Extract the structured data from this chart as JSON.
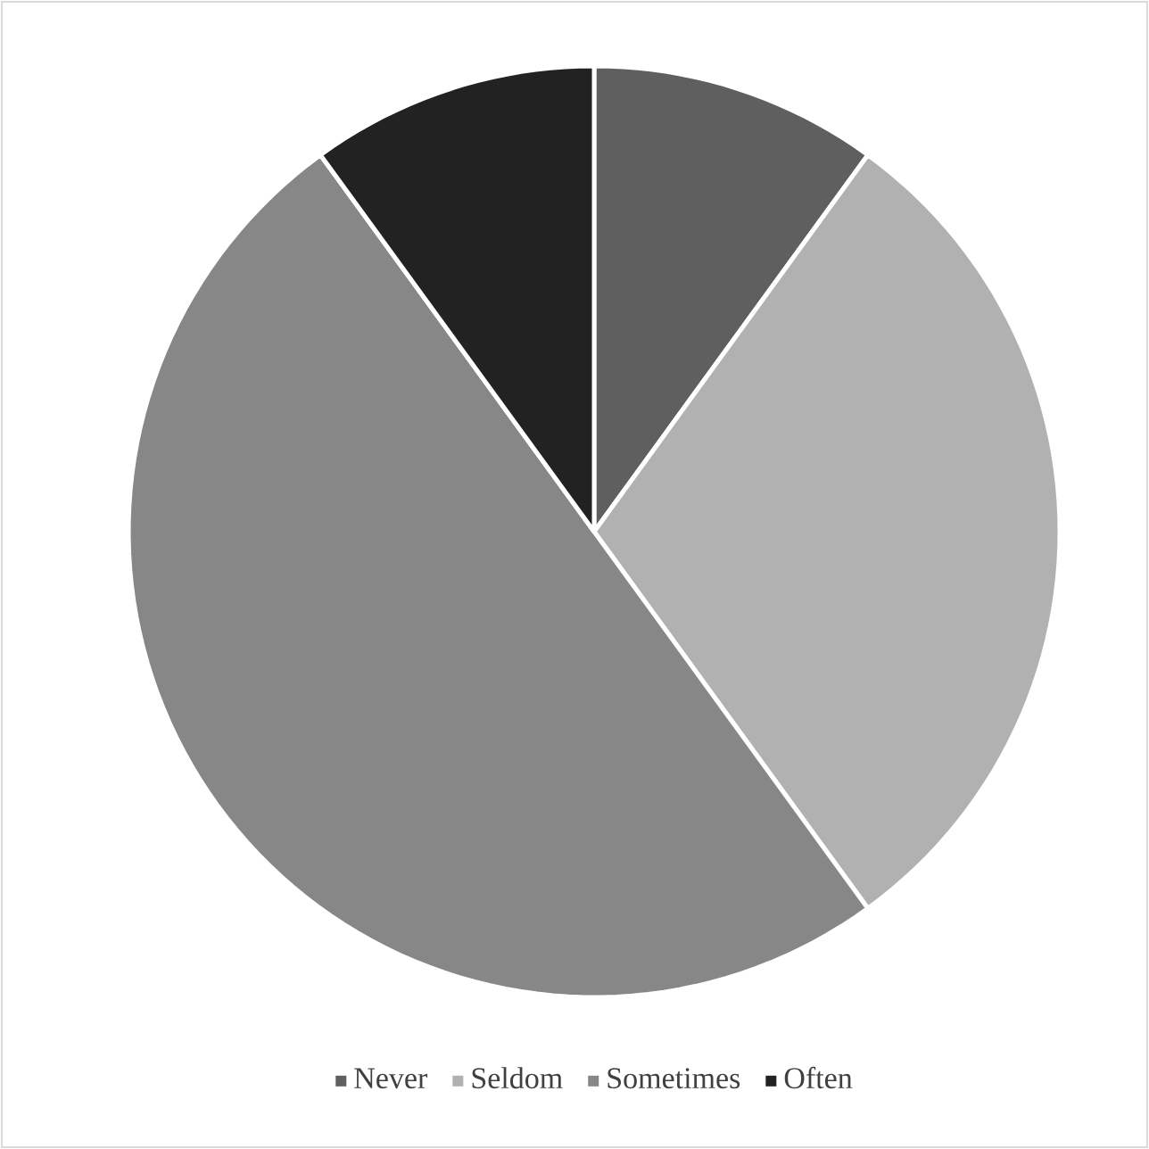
{
  "chart_data": {
    "type": "pie",
    "categories": [
      "Never",
      "Seldom",
      "Sometimes",
      "Often"
    ],
    "values": [
      10,
      30,
      50,
      10
    ],
    "colors": [
      "#5f5f5f",
      "#b1b1b1",
      "#878787",
      "#222222"
    ],
    "legend": "bottom"
  }
}
